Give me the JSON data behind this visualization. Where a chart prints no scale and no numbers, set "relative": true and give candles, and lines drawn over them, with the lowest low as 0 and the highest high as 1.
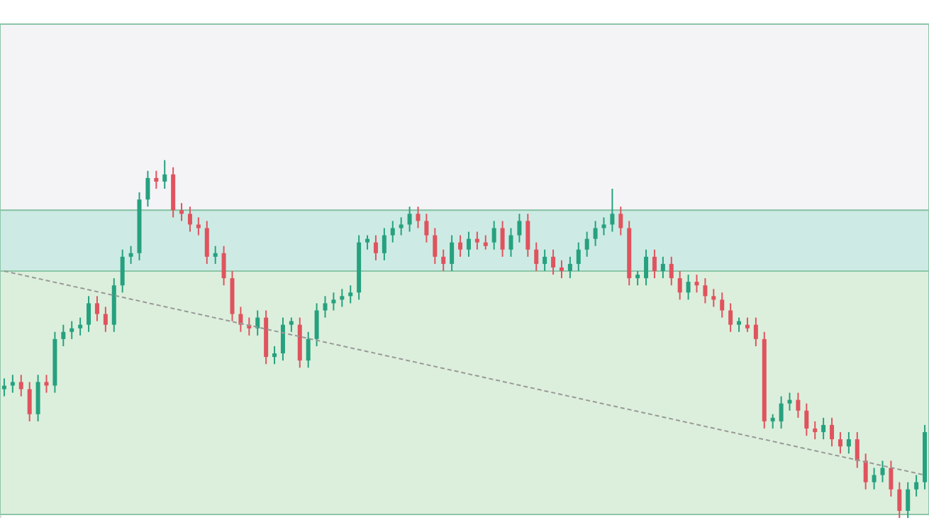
{
  "chart_data": {
    "type": "candlestick",
    "relative": true,
    "grid": false,
    "categories": [
      null,
      null,
      null,
      null,
      null,
      null,
      null,
      null,
      null,
      null,
      null,
      null,
      null,
      null,
      null,
      null,
      null,
      null,
      null,
      null,
      null,
      null,
      null,
      null,
      null,
      null,
      null,
      null,
      null,
      null,
      null,
      null,
      null,
      null,
      null,
      null,
      null,
      null,
      null,
      null,
      null,
      null,
      null,
      null,
      null,
      null,
      null,
      null,
      null,
      null,
      null,
      null,
      null,
      null,
      null,
      null,
      null,
      null,
      null,
      null,
      null,
      null,
      null,
      null,
      null,
      null,
      null,
      null,
      null,
      null,
      null,
      null,
      null,
      null,
      null,
      null,
      null,
      null,
      null,
      null,
      null,
      null,
      null,
      null,
      null,
      null,
      null,
      null,
      null,
      null,
      null,
      null,
      null,
      null,
      null,
      null,
      null,
      null,
      null,
      null,
      null,
      null,
      null,
      null,
      null,
      null,
      null,
      null,
      null,
      null
    ],
    "ohlc": [
      [
        0.36,
        0.39,
        0.34,
        0.37
      ],
      [
        0.37,
        0.4,
        0.35,
        0.38
      ],
      [
        0.38,
        0.4,
        0.34,
        0.36
      ],
      [
        0.36,
        0.38,
        0.27,
        0.29
      ],
      [
        0.29,
        0.4,
        0.27,
        0.38
      ],
      [
        0.38,
        0.4,
        0.35,
        0.37
      ],
      [
        0.37,
        0.52,
        0.35,
        0.5
      ],
      [
        0.5,
        0.54,
        0.48,
        0.52
      ],
      [
        0.52,
        0.55,
        0.5,
        0.53
      ],
      [
        0.53,
        0.56,
        0.51,
        0.54
      ],
      [
        0.54,
        0.62,
        0.52,
        0.6
      ],
      [
        0.6,
        0.62,
        0.55,
        0.57
      ],
      [
        0.57,
        0.59,
        0.52,
        0.54
      ],
      [
        0.54,
        0.67,
        0.52,
        0.65
      ],
      [
        0.65,
        0.75,
        0.63,
        0.73
      ],
      [
        0.73,
        0.76,
        0.71,
        0.74
      ],
      [
        0.74,
        0.91,
        0.72,
        0.89
      ],
      [
        0.89,
        0.97,
        0.87,
        0.95
      ],
      [
        0.95,
        0.97,
        0.92,
        0.94
      ],
      [
        0.94,
        1.0,
        0.92,
        0.96
      ],
      [
        0.96,
        0.98,
        0.84,
        0.86
      ],
      [
        0.86,
        0.88,
        0.83,
        0.85
      ],
      [
        0.85,
        0.87,
        0.8,
        0.82
      ],
      [
        0.82,
        0.84,
        0.79,
        0.81
      ],
      [
        0.81,
        0.83,
        0.71,
        0.73
      ],
      [
        0.73,
        0.76,
        0.71,
        0.74
      ],
      [
        0.74,
        0.76,
        0.65,
        0.67
      ],
      [
        0.67,
        0.69,
        0.55,
        0.57
      ],
      [
        0.57,
        0.59,
        0.52,
        0.54
      ],
      [
        0.54,
        0.56,
        0.51,
        0.53
      ],
      [
        0.53,
        0.58,
        0.51,
        0.56
      ],
      [
        0.56,
        0.58,
        0.43,
        0.45
      ],
      [
        0.45,
        0.48,
        0.43,
        0.46
      ],
      [
        0.46,
        0.56,
        0.44,
        0.54
      ],
      [
        0.54,
        0.56,
        0.52,
        0.55
      ],
      [
        0.54,
        0.56,
        0.42,
        0.44
      ],
      [
        0.44,
        0.52,
        0.42,
        0.5
      ],
      [
        0.5,
        0.6,
        0.48,
        0.58
      ],
      [
        0.58,
        0.62,
        0.56,
        0.6
      ],
      [
        0.6,
        0.63,
        0.58,
        0.61
      ],
      [
        0.61,
        0.64,
        0.59,
        0.62
      ],
      [
        0.62,
        0.65,
        0.6,
        0.63
      ],
      [
        0.63,
        0.79,
        0.61,
        0.77
      ],
      [
        0.77,
        0.79,
        0.75,
        0.78
      ],
      [
        0.77,
        0.79,
        0.72,
        0.74
      ],
      [
        0.74,
        0.81,
        0.72,
        0.79
      ],
      [
        0.79,
        0.83,
        0.77,
        0.81
      ],
      [
        0.81,
        0.84,
        0.79,
        0.82
      ],
      [
        0.82,
        0.87,
        0.8,
        0.85
      ],
      [
        0.85,
        0.87,
        0.81,
        0.83
      ],
      [
        0.83,
        0.85,
        0.77,
        0.79
      ],
      [
        0.79,
        0.81,
        0.71,
        0.73
      ],
      [
        0.73,
        0.75,
        0.69,
        0.71
      ],
      [
        0.71,
        0.79,
        0.69,
        0.77
      ],
      [
        0.77,
        0.79,
        0.73,
        0.75
      ],
      [
        0.75,
        0.8,
        0.73,
        0.78
      ],
      [
        0.78,
        0.8,
        0.75,
        0.77
      ],
      [
        0.77,
        0.79,
        0.75,
        0.76
      ],
      [
        0.77,
        0.83,
        0.75,
        0.81
      ],
      [
        0.81,
        0.83,
        0.73,
        0.75
      ],
      [
        0.75,
        0.81,
        0.73,
        0.79
      ],
      [
        0.79,
        0.85,
        0.77,
        0.83
      ],
      [
        0.83,
        0.85,
        0.73,
        0.75
      ],
      [
        0.75,
        0.77,
        0.69,
        0.71
      ],
      [
        0.71,
        0.75,
        0.69,
        0.73
      ],
      [
        0.73,
        0.75,
        0.68,
        0.7
      ],
      [
        0.7,
        0.72,
        0.67,
        0.69
      ],
      [
        0.69,
        0.73,
        0.67,
        0.71
      ],
      [
        0.71,
        0.77,
        0.69,
        0.75
      ],
      [
        0.75,
        0.8,
        0.73,
        0.78
      ],
      [
        0.78,
        0.83,
        0.76,
        0.81
      ],
      [
        0.81,
        0.84,
        0.79,
        0.82
      ],
      [
        0.82,
        0.92,
        0.8,
        0.85
      ],
      [
        0.85,
        0.87,
        0.79,
        0.81
      ],
      [
        0.81,
        0.83,
        0.65,
        0.67
      ],
      [
        0.67,
        0.69,
        0.65,
        0.68
      ],
      [
        0.67,
        0.75,
        0.65,
        0.73
      ],
      [
        0.73,
        0.75,
        0.67,
        0.69
      ],
      [
        0.69,
        0.73,
        0.67,
        0.71
      ],
      [
        0.71,
        0.73,
        0.65,
        0.67
      ],
      [
        0.67,
        0.69,
        0.61,
        0.63
      ],
      [
        0.63,
        0.68,
        0.61,
        0.66
      ],
      [
        0.66,
        0.68,
        0.63,
        0.65
      ],
      [
        0.65,
        0.67,
        0.6,
        0.62
      ],
      [
        0.62,
        0.64,
        0.59,
        0.61
      ],
      [
        0.61,
        0.63,
        0.56,
        0.58
      ],
      [
        0.58,
        0.6,
        0.52,
        0.54
      ],
      [
        0.54,
        0.56,
        0.52,
        0.55
      ],
      [
        0.54,
        0.56,
        0.52,
        0.53
      ],
      [
        0.54,
        0.56,
        0.48,
        0.5
      ],
      [
        0.5,
        0.52,
        0.25,
        0.27
      ],
      [
        0.27,
        0.29,
        0.25,
        0.28
      ],
      [
        0.27,
        0.34,
        0.25,
        0.32
      ],
      [
        0.32,
        0.35,
        0.3,
        0.33
      ],
      [
        0.33,
        0.35,
        0.28,
        0.3
      ],
      [
        0.3,
        0.32,
        0.23,
        0.25
      ],
      [
        0.25,
        0.27,
        0.22,
        0.24
      ],
      [
        0.24,
        0.28,
        0.22,
        0.26
      ],
      [
        0.26,
        0.28,
        0.2,
        0.22
      ],
      [
        0.22,
        0.24,
        0.18,
        0.2
      ],
      [
        0.2,
        0.24,
        0.18,
        0.22
      ],
      [
        0.22,
        0.24,
        0.14,
        0.16
      ],
      [
        0.16,
        0.18,
        0.08,
        0.1
      ],
      [
        0.1,
        0.14,
        0.08,
        0.12
      ],
      [
        0.12,
        0.16,
        0.1,
        0.14
      ],
      [
        0.14,
        0.16,
        0.06,
        0.08
      ],
      [
        0.08,
        0.1,
        0.0,
        0.02
      ],
      [
        0.02,
        0.1,
        0.0,
        0.08
      ],
      [
        0.08,
        0.12,
        0.06,
        0.1
      ],
      [
        0.1,
        0.26,
        0.08,
        0.24
      ]
    ],
    "series": [
      {
        "type": "line",
        "color": "#999999",
        "line_style": "dashed",
        "values": [
          0.69,
          null,
          null,
          null,
          null,
          null,
          null,
          null,
          null,
          null,
          null,
          null,
          null,
          null,
          null,
          null,
          null,
          null,
          null,
          null,
          null,
          null,
          null,
          null,
          null,
          null,
          null,
          null,
          null,
          null,
          null,
          null,
          null,
          null,
          null,
          null,
          null,
          null,
          null,
          null,
          null,
          null,
          null,
          null,
          null,
          null,
          null,
          null,
          null,
          null,
          null,
          null,
          null,
          null,
          null,
          null,
          null,
          null,
          null,
          null,
          null,
          null,
          null,
          null,
          null,
          null,
          null,
          null,
          null,
          null,
          null,
          null,
          null,
          null,
          null,
          null,
          null,
          null,
          null,
          null,
          null,
          null,
          null,
          null,
          null,
          null,
          null,
          null,
          null,
          null,
          null,
          null,
          null,
          null,
          null,
          null,
          null,
          null,
          null,
          null,
          null,
          null,
          null,
          null,
          null,
          null,
          null,
          null,
          null,
          0.12
        ]
      }
    ],
    "bands": [
      {
        "axis": "y",
        "from": 0.86,
        "to": 1.38,
        "color": "#f4f4f7"
      },
      {
        "axis": "y",
        "from": 0.69,
        "to": 0.86,
        "color": "#cdebe4"
      },
      {
        "axis": "y",
        "from": 0.01,
        "to": 0.69,
        "color": "#dcefdc"
      }
    ]
  }
}
